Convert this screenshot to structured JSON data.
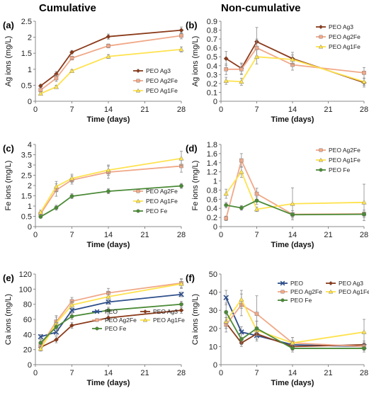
{
  "column_titles": {
    "left": "Cumulative",
    "right": "Non-cumulative"
  },
  "chart_data": [
    {
      "id": "a",
      "panel_label": "(a)",
      "type": "line",
      "xlabel": "Time (days)",
      "ylabel": "Ag ions (mg/L)",
      "xlim": [
        0,
        28
      ],
      "xticks": [
        0,
        7,
        14,
        21,
        28
      ],
      "ylim": [
        0,
        2.5
      ],
      "yticks": [
        0,
        0.5,
        1,
        1.5,
        2,
        2.5
      ],
      "legend_position": "bottom-right",
      "series": [
        {
          "name": "PEO Ag3",
          "color": "#8B3A1A",
          "marker": "diamond",
          "x": [
            1,
            4,
            7,
            14,
            28
          ],
          "y": [
            0.48,
            0.85,
            1.53,
            2.02,
            2.22
          ],
          "err": [
            0.05,
            0.08,
            0.05,
            0.08,
            0.1
          ]
        },
        {
          "name": "PEO Ag2Fe",
          "color": "#F0A888",
          "marker": "square",
          "x": [
            1,
            4,
            7,
            14,
            28
          ],
          "y": [
            0.35,
            0.72,
            1.35,
            1.73,
            2.05
          ],
          "err": [
            0.05,
            0.1,
            0.06,
            0.06,
            0.1
          ]
        },
        {
          "name": "PEO Ag1Fe",
          "color": "#FFE24D",
          "marker": "triangle",
          "x": [
            1,
            4,
            7,
            14,
            28
          ],
          "y": [
            0.24,
            0.45,
            0.95,
            1.4,
            1.62
          ],
          "err": [
            0.03,
            0.05,
            0.04,
            0.06,
            0.08
          ]
        }
      ]
    },
    {
      "id": "b",
      "panel_label": "(b)",
      "type": "line",
      "xlabel": "Time (days)",
      "ylabel": "Ag ions (mg/L)",
      "xlim": [
        0,
        28
      ],
      "xticks": [
        0,
        7,
        14,
        21,
        28
      ],
      "ylim": [
        0,
        0.9
      ],
      "yticks": [
        0,
        0.1,
        0.2,
        0.3,
        0.4,
        0.5,
        0.6,
        0.7,
        0.8,
        0.9
      ],
      "legend_position": "top-right",
      "series": [
        {
          "name": "PEO Ag3",
          "color": "#8B3A1A",
          "marker": "diamond",
          "x": [
            1,
            4,
            7,
            14,
            28
          ],
          "y": [
            0.48,
            0.37,
            0.67,
            0.48,
            0.21
          ],
          "err": [
            0.08,
            0.06,
            0.16,
            0.07,
            0.05
          ]
        },
        {
          "name": "PEO Ag2Fe",
          "color": "#F0A888",
          "marker": "square",
          "x": [
            1,
            4,
            7,
            14,
            28
          ],
          "y": [
            0.36,
            0.36,
            0.6,
            0.41,
            0.32
          ],
          "err": [
            0.06,
            0.06,
            0.1,
            0.06,
            0.06
          ]
        },
        {
          "name": "PEO Ag1Fe",
          "color": "#FFE24D",
          "marker": "triangle",
          "x": [
            1,
            4,
            7,
            14,
            28
          ],
          "y": [
            0.23,
            0.22,
            0.5,
            0.47,
            0.22
          ],
          "err": [
            0.04,
            0.04,
            0.08,
            0.05,
            0.04
          ]
        }
      ]
    },
    {
      "id": "c",
      "panel_label": "(c)",
      "type": "line",
      "xlabel": "Time (days)",
      "ylabel": "Fe ions (mg/L)",
      "xlim": [
        0,
        28
      ],
      "xticks": [
        0,
        7,
        14,
        21,
        28
      ],
      "ylim": [
        0,
        4
      ],
      "yticks": [
        0,
        0.5,
        1,
        1.5,
        2,
        2.5,
        3,
        3.5,
        4
      ],
      "legend_position": "bottom-right",
      "series": [
        {
          "name": "PEO Ag2Fe",
          "color": "#F0A888",
          "marker": "square",
          "x": [
            1,
            4,
            7,
            14,
            28
          ],
          "y": [
            0.62,
            1.78,
            2.27,
            2.65,
            2.95
          ],
          "err": [
            0.1,
            0.3,
            0.2,
            0.3,
            0.3
          ]
        },
        {
          "name": "PEO Ag1Fe",
          "color": "#FFE24D",
          "marker": "triangle",
          "x": [
            1,
            4,
            7,
            14,
            28
          ],
          "y": [
            0.7,
            1.95,
            2.35,
            2.75,
            3.32
          ],
          "err": [
            0.1,
            0.25,
            0.2,
            0.25,
            0.35
          ]
        },
        {
          "name": "PEO Fe",
          "color": "#4A8A35",
          "marker": "circle",
          "x": [
            1,
            4,
            7,
            14,
            28
          ],
          "y": [
            0.48,
            0.92,
            1.48,
            1.72,
            1.98
          ],
          "err": [
            0.06,
            0.12,
            0.12,
            0.12,
            0.12
          ]
        }
      ]
    },
    {
      "id": "d",
      "panel_label": "(d)",
      "type": "line",
      "xlabel": "Time (days)",
      "ylabel": "Fe ions (mg/L)",
      "xlim": [
        0,
        28
      ],
      "xticks": [
        0,
        7,
        14,
        21,
        28
      ],
      "ylim": [
        0,
        1.8
      ],
      "yticks": [
        0,
        0.2,
        0.4,
        0.6,
        0.8,
        1,
        1.2,
        1.4,
        1.6,
        1.8
      ],
      "legend_position": "top-right",
      "series": [
        {
          "name": "PEO Ag2Fe",
          "color": "#F0A888",
          "marker": "square",
          "x": [
            1,
            4,
            7,
            14,
            28
          ],
          "y": [
            0.18,
            1.45,
            0.72,
            0.27,
            0.28
          ],
          "err": [
            0.05,
            0.15,
            0.12,
            0.08,
            0.08
          ]
        },
        {
          "name": "PEO Ag1Fe",
          "color": "#FFE24D",
          "marker": "triangle",
          "x": [
            1,
            4,
            7,
            14,
            28
          ],
          "y": [
            0.72,
            1.2,
            0.38,
            0.5,
            0.53
          ],
          "err": [
            0.1,
            0.12,
            0.05,
            0.35,
            0.4
          ]
        },
        {
          "name": "PEO Fe",
          "color": "#4A8A35",
          "marker": "circle",
          "x": [
            1,
            4,
            7,
            14,
            28
          ],
          "y": [
            0.47,
            0.41,
            0.57,
            0.26,
            0.27
          ],
          "err": [
            0.06,
            0.05,
            0.08,
            0.04,
            0.04
          ]
        }
      ]
    },
    {
      "id": "e",
      "panel_label": "(e)",
      "type": "line",
      "xlabel": "Time (days)",
      "ylabel": "Ca ions (mg/L)",
      "xlim": [
        0,
        28
      ],
      "xticks": [
        0,
        7,
        14,
        21,
        28
      ],
      "ylim": [
        0,
        120
      ],
      "yticks": [
        0,
        20,
        40,
        60,
        80,
        100,
        120
      ],
      "legend_position": "bottom-right",
      "series": [
        {
          "name": "PEO",
          "color": "#2E4E8A",
          "marker": "x",
          "x": [
            1,
            4,
            7,
            14,
            28
          ],
          "y": [
            37,
            43,
            72,
            83,
            93
          ],
          "err": [
            3,
            4,
            3,
            3,
            3
          ]
        },
        {
          "name": "PEO Ag3",
          "color": "#8B3A1A",
          "marker": "diamond",
          "x": [
            1,
            4,
            7,
            14,
            28
          ],
          "y": [
            23,
            33,
            52,
            62,
            72
          ],
          "err": [
            3,
            4,
            4,
            4,
            4
          ]
        },
        {
          "name": "PEO Ag2Fe",
          "color": "#F0A888",
          "marker": "square",
          "x": [
            1,
            4,
            7,
            14,
            28
          ],
          "y": [
            25,
            57,
            84,
            95,
            108
          ],
          "err": [
            4,
            8,
            5,
            6,
            6
          ]
        },
        {
          "name": "PEO Ag1Fe",
          "color": "#FFE24D",
          "marker": "triangle",
          "x": [
            1,
            4,
            7,
            14,
            28
          ],
          "y": [
            21,
            55,
            79,
            90,
            107
          ],
          "err": [
            3,
            8,
            5,
            6,
            6
          ]
        },
        {
          "name": "PEO Fe",
          "color": "#4A8A35",
          "marker": "circle",
          "x": [
            1,
            4,
            7,
            14,
            28
          ],
          "y": [
            29,
            50,
            64,
            72,
            80
          ],
          "err": [
            4,
            6,
            4,
            4,
            4
          ]
        }
      ]
    },
    {
      "id": "f",
      "panel_label": "(f)",
      "type": "line",
      "xlabel": "Time (days)",
      "ylabel": "Ca ions (mg/L)",
      "xlim": [
        0,
        28
      ],
      "xticks": [
        0,
        7,
        14,
        21,
        28
      ],
      "ylim": [
        0,
        50
      ],
      "yticks": [
        0,
        10,
        20,
        30,
        40,
        50
      ],
      "legend_position": "top-right",
      "series": [
        {
          "name": "PEO",
          "color": "#2E4E8A",
          "marker": "x",
          "x": [
            1,
            4,
            7,
            14,
            28
          ],
          "y": [
            37,
            18,
            16,
            11,
            10
          ],
          "err": [
            4,
            3,
            3,
            2,
            2
          ]
        },
        {
          "name": "PEO Ag3",
          "color": "#8B3A1A",
          "marker": "diamond",
          "x": [
            1,
            4,
            7,
            14,
            28
          ],
          "y": [
            23,
            12,
            17,
            10,
            11
          ],
          "err": [
            3,
            2,
            3,
            2,
            2
          ]
        },
        {
          "name": "PEO Ag2Fe",
          "color": "#F0A888",
          "marker": "square",
          "x": [
            1,
            4,
            7,
            14,
            28
          ],
          "y": [
            22,
            33,
            28,
            12,
            10
          ],
          "err": [
            4,
            6,
            10,
            3,
            2
          ]
        },
        {
          "name": "PEO Ag1Fe",
          "color": "#FFE24D",
          "marker": "triangle",
          "x": [
            1,
            4,
            7,
            14,
            28
          ],
          "y": [
            24,
            36,
            19,
            12,
            18
          ],
          "err": [
            4,
            5,
            5,
            3,
            7
          ]
        },
        {
          "name": "PEO Fe",
          "color": "#4A8A35",
          "marker": "circle",
          "x": [
            1,
            4,
            7,
            14,
            28
          ],
          "y": [
            29,
            14,
            20,
            9,
            9
          ],
          "err": [
            5,
            3,
            4,
            2,
            2
          ]
        }
      ]
    }
  ]
}
